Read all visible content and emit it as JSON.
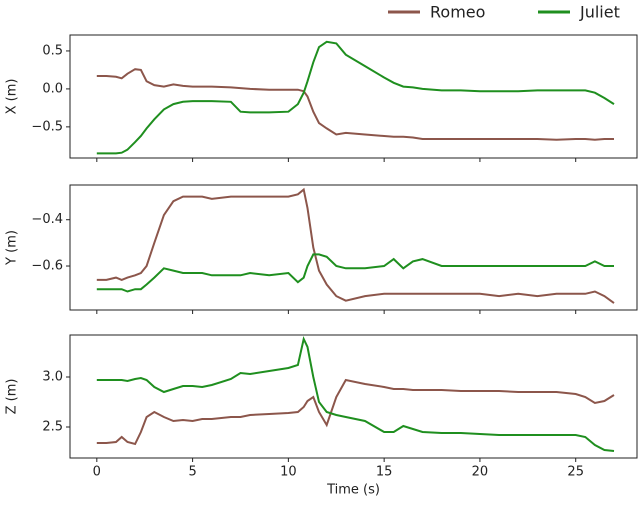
{
  "chart_data": [
    {
      "type": "line",
      "ylabel": "X (m)",
      "x": [
        0,
        0.5,
        1,
        1.3,
        1.6,
        2,
        2.3,
        2.6,
        3,
        3.5,
        4,
        4.5,
        5,
        5.5,
        6,
        7,
        7.5,
        8,
        9,
        10,
        10.5,
        10.8,
        11,
        11.3,
        11.6,
        12,
        12.5,
        13,
        14,
        15,
        15.5,
        16,
        16.5,
        17,
        18,
        19,
        20,
        21,
        22,
        23,
        24,
        25,
        25.5,
        26,
        26.5,
        27
      ],
      "xlim": [
        -1.4,
        28.2
      ],
      "xticks": [
        0,
        5,
        10,
        15,
        20,
        25
      ],
      "ylim": [
        -0.91,
        0.71
      ],
      "yticks": [
        {
          "value": 0.5,
          "label": "0.5"
        },
        {
          "value": 0,
          "label": "0.0"
        },
        {
          "value": -0.5,
          "label": "−0.5"
        }
      ],
      "series": [
        {
          "name": "Romeo",
          "color": "#8c564b",
          "values": [
            0.17,
            0.17,
            0.16,
            0.14,
            0.2,
            0.26,
            0.25,
            0.1,
            0.05,
            0.03,
            0.06,
            0.04,
            0.03,
            0.03,
            0.03,
            0.02,
            0.01,
            0,
            -0.01,
            -0.01,
            -0.01,
            -0.03,
            -0.1,
            -0.3,
            -0.45,
            -0.52,
            -0.6,
            -0.58,
            -0.6,
            -0.62,
            -0.63,
            -0.63,
            -0.64,
            -0.66,
            -0.66,
            -0.66,
            -0.66,
            -0.66,
            -0.66,
            -0.66,
            -0.67,
            -0.66,
            -0.66,
            -0.67,
            -0.66,
            -0.66
          ]
        },
        {
          "name": "Juliet",
          "color": "#1f8f1f",
          "values": [
            -0.85,
            -0.85,
            -0.85,
            -0.84,
            -0.8,
            -0.7,
            -0.62,
            -0.52,
            -0.4,
            -0.27,
            -0.2,
            -0.17,
            -0.16,
            -0.16,
            -0.16,
            -0.17,
            -0.3,
            -0.31,
            -0.31,
            -0.3,
            -0.2,
            -0.05,
            0.1,
            0.35,
            0.55,
            0.62,
            0.6,
            0.45,
            0.3,
            0.15,
            0.08,
            0.03,
            0.02,
            0,
            -0.02,
            -0.02,
            -0.03,
            -0.03,
            -0.03,
            -0.02,
            -0.02,
            -0.02,
            -0.02,
            -0.05,
            -0.12,
            -0.2
          ]
        }
      ]
    },
    {
      "type": "line",
      "ylabel": "Y (m)",
      "x": [
        0,
        0.5,
        1,
        1.3,
        1.6,
        2,
        2.3,
        2.6,
        3,
        3.5,
        4,
        4.5,
        5,
        5.5,
        6,
        7,
        7.5,
        8,
        9,
        10,
        10.5,
        10.8,
        11,
        11.3,
        11.6,
        12,
        12.5,
        13,
        14,
        15,
        15.5,
        16,
        16.5,
        17,
        18,
        19,
        20,
        21,
        22,
        23,
        24,
        25,
        25.5,
        26,
        26.5,
        27
      ],
      "xlim": [
        -1.4,
        28.2
      ],
      "xticks": [
        0,
        5,
        10,
        15,
        20,
        25
      ],
      "ylim": [
        -0.79,
        -0.25
      ],
      "yticks": [
        {
          "value": -0.4,
          "label": "−0.4"
        },
        {
          "value": -0.6,
          "label": "−0.6"
        }
      ],
      "series": [
        {
          "color": "#8c564b",
          "values": [
            -0.66,
            -0.66,
            -0.65,
            -0.66,
            -0.65,
            -0.64,
            -0.63,
            -0.6,
            -0.5,
            -0.38,
            -0.32,
            -0.3,
            -0.3,
            -0.3,
            -0.31,
            -0.3,
            -0.3,
            -0.3,
            -0.3,
            -0.3,
            -0.29,
            -0.27,
            -0.35,
            -0.52,
            -0.62,
            -0.68,
            -0.73,
            -0.75,
            -0.73,
            -0.72,
            -0.72,
            -0.72,
            -0.72,
            -0.72,
            -0.72,
            -0.72,
            -0.72,
            -0.73,
            -0.72,
            -0.73,
            -0.72,
            -0.72,
            -0.72,
            -0.71,
            -0.73,
            -0.76
          ]
        },
        {
          "color": "#1f8f1f",
          "values": [
            -0.7,
            -0.7,
            -0.7,
            -0.7,
            -0.71,
            -0.7,
            -0.7,
            -0.68,
            -0.65,
            -0.61,
            -0.62,
            -0.63,
            -0.63,
            -0.63,
            -0.64,
            -0.64,
            -0.64,
            -0.63,
            -0.64,
            -0.63,
            -0.67,
            -0.65,
            -0.6,
            -0.55,
            -0.55,
            -0.56,
            -0.6,
            -0.61,
            -0.61,
            -0.6,
            -0.57,
            -0.61,
            -0.58,
            -0.57,
            -0.6,
            -0.6,
            -0.6,
            -0.6,
            -0.6,
            -0.6,
            -0.6,
            -0.6,
            -0.6,
            -0.58,
            -0.6,
            -0.6
          ]
        }
      ]
    },
    {
      "type": "line",
      "ylabel": "Z (m)",
      "xlabel": "Time (s)",
      "x": [
        0,
        0.5,
        1,
        1.3,
        1.6,
        2,
        2.3,
        2.6,
        3,
        3.5,
        4,
        4.5,
        5,
        5.5,
        6,
        7,
        7.5,
        8,
        9,
        10,
        10.5,
        10.8,
        11,
        11.3,
        11.6,
        12,
        12.5,
        13,
        14,
        15,
        15.5,
        16,
        16.5,
        17,
        18,
        19,
        20,
        21,
        22,
        23,
        24,
        25,
        25.5,
        26,
        26.5,
        27
      ],
      "xlim": [
        -1.4,
        28.2
      ],
      "xticks": [
        0,
        5,
        10,
        15,
        20,
        25
      ],
      "ylim": [
        2.19,
        3.42
      ],
      "yticks": [
        {
          "value": 3,
          "label": "3.0"
        },
        {
          "value": 2.5,
          "label": "2.5"
        }
      ],
      "series": [
        {
          "color": "#8c564b",
          "values": [
            2.34,
            2.34,
            2.35,
            2.4,
            2.35,
            2.33,
            2.45,
            2.6,
            2.65,
            2.6,
            2.56,
            2.57,
            2.56,
            2.58,
            2.58,
            2.6,
            2.6,
            2.62,
            2.63,
            2.64,
            2.65,
            2.7,
            2.76,
            2.8,
            2.65,
            2.52,
            2.8,
            2.97,
            2.93,
            2.9,
            2.88,
            2.88,
            2.87,
            2.87,
            2.87,
            2.86,
            2.86,
            2.86,
            2.85,
            2.85,
            2.85,
            2.83,
            2.8,
            2.74,
            2.76,
            2.82
          ]
        },
        {
          "color": "#1f8f1f",
          "values": [
            2.97,
            2.97,
            2.97,
            2.97,
            2.96,
            2.98,
            2.99,
            2.97,
            2.9,
            2.85,
            2.88,
            2.91,
            2.91,
            2.9,
            2.92,
            2.98,
            3.04,
            3.03,
            3.06,
            3.09,
            3.12,
            3.38,
            3.3,
            3,
            2.75,
            2.65,
            2.62,
            2.6,
            2.56,
            2.45,
            2.45,
            2.51,
            2.48,
            2.45,
            2.44,
            2.44,
            2.43,
            2.42,
            2.42,
            2.42,
            2.42,
            2.42,
            2.4,
            2.32,
            2.27,
            2.26
          ]
        }
      ]
    }
  ]
}
